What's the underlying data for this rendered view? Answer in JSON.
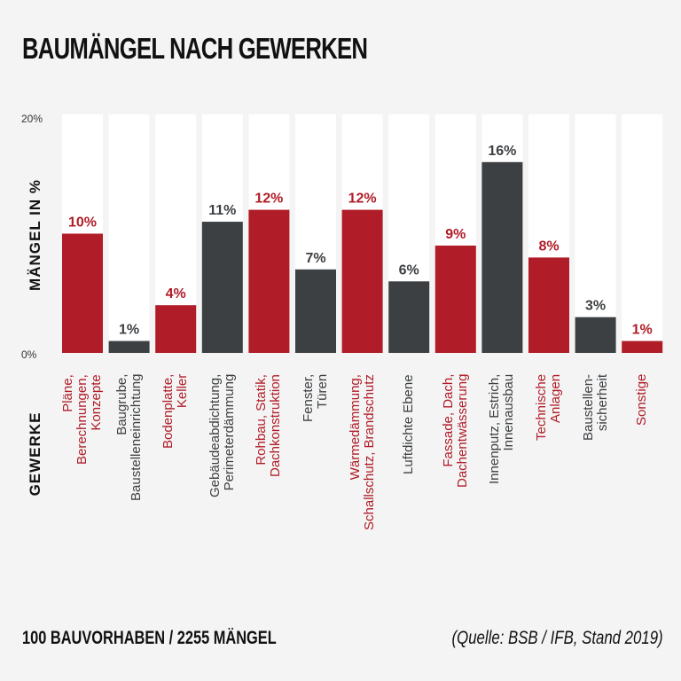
{
  "title": "BAUMÄNGEL NACH GEWERKEN",
  "footer": {
    "summary": "100 BAUVORHABEN / 2255 MÄNGEL",
    "source": "(Quelle: BSB / IFB, Stand 2019)"
  },
  "colors": {
    "red": "#b01c27",
    "dark": "#3d4043",
    "column_bg": "#ffffff",
    "background": "#f4f4f4"
  },
  "chart_data": {
    "type": "bar",
    "title": "BAUMÄNGEL NACH GEWERKEN",
    "ylabel": "MÄNGEL IN %",
    "xlabel": "GEWERKE",
    "ylim": [
      0,
      20
    ],
    "yticks": [
      "0%",
      "20%"
    ],
    "grid": false,
    "categories": [
      [
        "Pläne,",
        "Berechnungen,",
        "Konzepte"
      ],
      [
        "Baugrube,",
        "Baustelleneinrichtung"
      ],
      [
        "Bodenplatte,",
        "Keller"
      ],
      [
        "Gebäudeabdichtung,",
        "Perimeterdämmung"
      ],
      [
        "Rohbau, Statik,",
        "Dachkonstruktion"
      ],
      [
        "Fenster,",
        "Türen"
      ],
      [
        "Wärmedämmung,",
        "Schallschutz, Brandschutz"
      ],
      [
        "Luftdichte Ebene"
      ],
      [
        "Fassade, Dach,",
        "Dachentwässerung"
      ],
      [
        "Innenputz, Estrich,",
        "Innenausbau"
      ],
      [
        "Technische",
        "Anlagen"
      ],
      [
        "Baustellen-",
        "sicherheit"
      ],
      [
        "Sonstige"
      ]
    ],
    "values": [
      10,
      1,
      4,
      11,
      12,
      7,
      12,
      6,
      9,
      16,
      8,
      3,
      1
    ],
    "labels": [
      "10%",
      "1%",
      "4%",
      "11%",
      "12%",
      "7%",
      "12%",
      "6%",
      "9%",
      "16%",
      "8%",
      "3%",
      "1%"
    ],
    "colors": [
      "red",
      "dark",
      "red",
      "dark",
      "red",
      "dark",
      "red",
      "dark",
      "red",
      "dark",
      "red",
      "dark",
      "red"
    ]
  }
}
